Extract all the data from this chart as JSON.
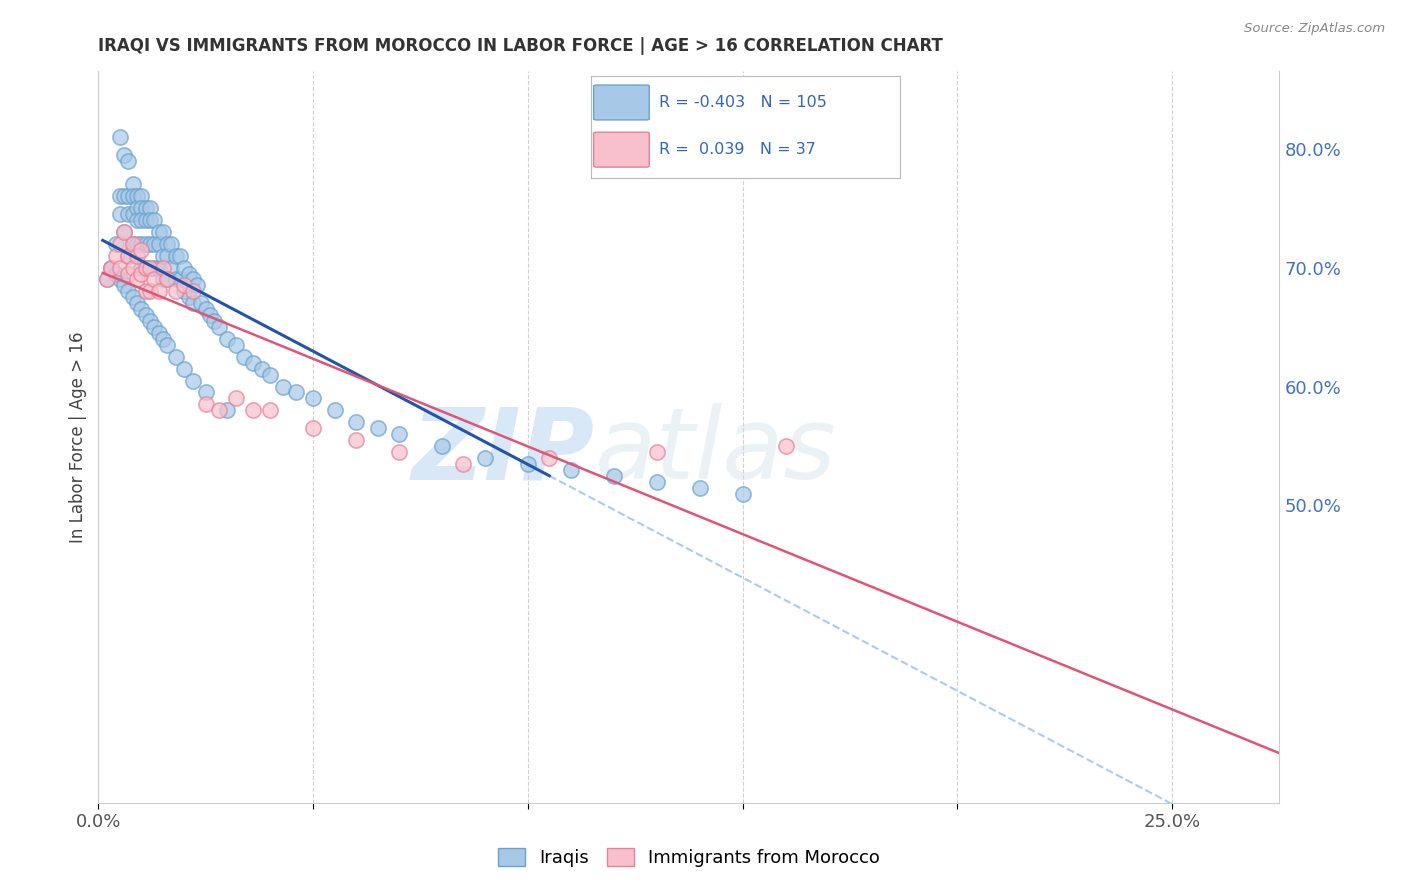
{
  "title": "IRAQI VS IMMIGRANTS FROM MOROCCO IN LABOR FORCE | AGE > 16 CORRELATION CHART",
  "source": "Source: ZipAtlas.com",
  "ylabel": "In Labor Force | Age > 16",
  "xlim": [
    0.0,
    0.275
  ],
  "ylim": [
    0.25,
    0.865
  ],
  "legend_R_blue": "-0.403",
  "legend_N_blue": "105",
  "legend_R_pink": "0.039",
  "legend_N_pink": "37",
  "legend_label_blue": "Iraqis",
  "legend_label_pink": "Immigrants from Morocco",
  "blue_color": "#a8c8e8",
  "blue_edge_color": "#6aa3cc",
  "pink_color": "#f8c0cc",
  "pink_edge_color": "#e88098",
  "blue_line_color": "#2255aa",
  "pink_line_color": "#e05575",
  "dashed_line_color": "#aaccee",
  "background_color": "#ffffff",
  "grid_color": "#cccccc",
  "watermark_zip": "ZIP",
  "watermark_atlas": "atlas",
  "title_color": "#333333",
  "source_color": "#888888",
  "axis_label_color": "#4472c4",
  "blue_scatter_x": [
    0.002,
    0.003,
    0.004,
    0.004,
    0.005,
    0.005,
    0.005,
    0.006,
    0.006,
    0.006,
    0.007,
    0.007,
    0.007,
    0.007,
    0.008,
    0.008,
    0.008,
    0.008,
    0.009,
    0.009,
    0.009,
    0.009,
    0.01,
    0.01,
    0.01,
    0.01,
    0.01,
    0.011,
    0.011,
    0.011,
    0.011,
    0.012,
    0.012,
    0.012,
    0.012,
    0.013,
    0.013,
    0.013,
    0.014,
    0.014,
    0.014,
    0.015,
    0.015,
    0.015,
    0.016,
    0.016,
    0.016,
    0.017,
    0.017,
    0.018,
    0.018,
    0.019,
    0.019,
    0.02,
    0.02,
    0.021,
    0.021,
    0.022,
    0.022,
    0.023,
    0.024,
    0.025,
    0.026,
    0.027,
    0.028,
    0.03,
    0.032,
    0.034,
    0.036,
    0.038,
    0.04,
    0.043,
    0.046,
    0.05,
    0.055,
    0.06,
    0.065,
    0.07,
    0.08,
    0.09,
    0.1,
    0.11,
    0.12,
    0.13,
    0.14,
    0.15,
    0.003,
    0.004,
    0.005,
    0.006,
    0.007,
    0.008,
    0.009,
    0.01,
    0.011,
    0.012,
    0.013,
    0.014,
    0.015,
    0.016,
    0.018,
    0.02,
    0.022,
    0.025,
    0.03
  ],
  "blue_scatter_y": [
    0.69,
    0.7,
    0.72,
    0.695,
    0.81,
    0.76,
    0.745,
    0.795,
    0.76,
    0.73,
    0.79,
    0.76,
    0.745,
    0.71,
    0.77,
    0.76,
    0.745,
    0.72,
    0.76,
    0.75,
    0.74,
    0.72,
    0.76,
    0.75,
    0.74,
    0.72,
    0.7,
    0.75,
    0.74,
    0.72,
    0.7,
    0.75,
    0.74,
    0.72,
    0.7,
    0.74,
    0.72,
    0.7,
    0.73,
    0.72,
    0.7,
    0.73,
    0.71,
    0.69,
    0.72,
    0.71,
    0.69,
    0.72,
    0.7,
    0.71,
    0.69,
    0.71,
    0.69,
    0.7,
    0.68,
    0.695,
    0.675,
    0.69,
    0.67,
    0.685,
    0.67,
    0.665,
    0.66,
    0.655,
    0.65,
    0.64,
    0.635,
    0.625,
    0.62,
    0.615,
    0.61,
    0.6,
    0.595,
    0.59,
    0.58,
    0.57,
    0.565,
    0.56,
    0.55,
    0.54,
    0.535,
    0.53,
    0.525,
    0.52,
    0.515,
    0.51,
    0.7,
    0.695,
    0.69,
    0.685,
    0.68,
    0.675,
    0.67,
    0.665,
    0.66,
    0.655,
    0.65,
    0.645,
    0.64,
    0.635,
    0.625,
    0.615,
    0.605,
    0.595,
    0.58
  ],
  "pink_scatter_x": [
    0.002,
    0.003,
    0.004,
    0.005,
    0.005,
    0.006,
    0.007,
    0.007,
    0.008,
    0.008,
    0.009,
    0.009,
    0.01,
    0.01,
    0.011,
    0.011,
    0.012,
    0.012,
    0.013,
    0.014,
    0.015,
    0.016,
    0.018,
    0.02,
    0.022,
    0.025,
    0.028,
    0.032,
    0.036,
    0.04,
    0.05,
    0.06,
    0.07,
    0.085,
    0.105,
    0.13,
    0.16
  ],
  "pink_scatter_y": [
    0.69,
    0.7,
    0.71,
    0.72,
    0.7,
    0.73,
    0.71,
    0.695,
    0.72,
    0.7,
    0.71,
    0.69,
    0.715,
    0.695,
    0.7,
    0.68,
    0.7,
    0.68,
    0.69,
    0.68,
    0.7,
    0.69,
    0.68,
    0.685,
    0.68,
    0.585,
    0.58,
    0.59,
    0.58,
    0.58,
    0.565,
    0.555,
    0.545,
    0.535,
    0.54,
    0.545,
    0.55
  ],
  "blue_line_x_start": 0.001,
  "blue_line_solid_end": 0.105,
  "blue_line_dashed_end": 0.275,
  "pink_line_x_start": 0.001,
  "pink_line_x_end": 0.275
}
